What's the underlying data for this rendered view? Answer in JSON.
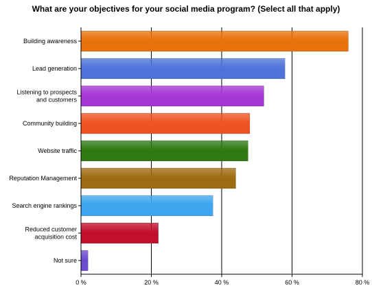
{
  "chart_data": {
    "type": "bar",
    "orientation": "horizontal",
    "title": "What are your objectives for your social media program? (Select all that apply)",
    "categories": [
      [
        "Building awareness"
      ],
      [
        "Lead generation"
      ],
      [
        "Listening to prospects",
        "and customers"
      ],
      [
        "Community building"
      ],
      [
        "Website traffic"
      ],
      [
        "Reputation Management"
      ],
      [
        "Search engine rankings"
      ],
      [
        "Reduced customer",
        "acquisition cost"
      ],
      [
        "Not sure"
      ]
    ],
    "values": [
      76,
      58,
      52,
      48,
      47.5,
      44,
      37.5,
      22,
      2
    ],
    "colors": [
      "#e8720c",
      "#4f73d9",
      "#a437d6",
      "#ef5323",
      "#2f7a12",
      "#9e6c12",
      "#3ca6ee",
      "#c10f2c",
      "#6c4bd0"
    ],
    "xlim": [
      0,
      80
    ],
    "x_ticks": [
      "0 %",
      "20 %",
      "40 %",
      "60 %",
      "80 %"
    ],
    "grid": true,
    "xlabel": "",
    "ylabel": ""
  }
}
